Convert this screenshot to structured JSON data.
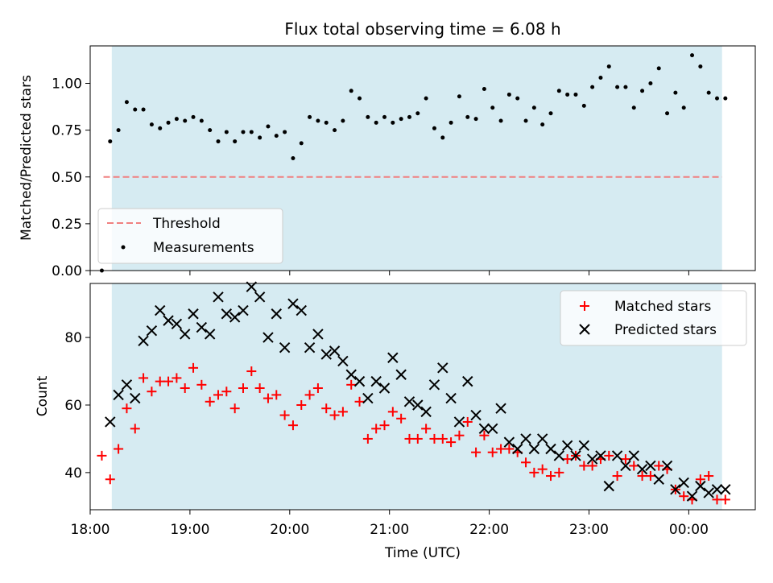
{
  "chart_data": [
    {
      "type": "scatter",
      "title": "Flux total observing time = 6.08 h",
      "ylabel": "Matched/Predicted stars",
      "xlim": [
        "18:00",
        "00:40"
      ],
      "ylim": [
        0,
        1.2
      ],
      "y_ticks": [
        "0.00",
        "0.25",
        "0.50",
        "0.75",
        "1.00"
      ],
      "legend_position": "lower-left",
      "shaded_interval": [
        "18:13",
        "00:20"
      ],
      "shade_color": "#add8e6",
      "series": [
        {
          "name": "Threshold",
          "kind": "dashed-line",
          "color": "#f08080",
          "x": [
            "18:08",
            "00:20"
          ],
          "y": [
            0.5,
            0.5
          ]
        },
        {
          "name": "Measurements",
          "kind": "points",
          "color": "#000000",
          "x": [
            "18:07",
            "18:12",
            "18:17",
            "18:22",
            "18:27",
            "18:32",
            "18:37",
            "18:42",
            "18:47",
            "18:52",
            "18:57",
            "19:02",
            "19:07",
            "19:12",
            "19:17",
            "19:22",
            "19:27",
            "19:32",
            "19:37",
            "19:42",
            "19:47",
            "19:52",
            "19:57",
            "20:02",
            "20:07",
            "20:12",
            "20:17",
            "20:22",
            "20:27",
            "20:32",
            "20:37",
            "20:42",
            "20:47",
            "20:52",
            "20:57",
            "21:02",
            "21:07",
            "21:12",
            "21:17",
            "21:22",
            "21:27",
            "21:32",
            "21:37",
            "21:42",
            "21:47",
            "21:52",
            "21:57",
            "22:02",
            "22:07",
            "22:12",
            "22:17",
            "22:22",
            "22:27",
            "22:32",
            "22:37",
            "22:42",
            "22:47",
            "22:52",
            "22:57",
            "23:02",
            "23:07",
            "23:12",
            "23:17",
            "23:22",
            "23:27",
            "23:32",
            "23:37",
            "23:42",
            "23:47",
            "23:52",
            "23:57",
            "00:02",
            "00:07",
            "00:12",
            "00:17",
            "00:22"
          ],
          "y": [
            0.0,
            0.69,
            0.75,
            0.9,
            0.86,
            0.86,
            0.78,
            0.76,
            0.79,
            0.81,
            0.8,
            0.82,
            0.8,
            0.75,
            0.69,
            0.74,
            0.69,
            0.74,
            0.74,
            0.71,
            0.77,
            0.72,
            0.74,
            0.6,
            0.68,
            0.82,
            0.8,
            0.79,
            0.75,
            0.8,
            0.96,
            0.92,
            0.82,
            0.79,
            0.82,
            0.79,
            0.81,
            0.82,
            0.84,
            0.92,
            0.76,
            0.71,
            0.79,
            0.93,
            0.82,
            0.81,
            0.97,
            0.87,
            0.8,
            0.94,
            0.92,
            0.8,
            0.87,
            0.78,
            0.84,
            0.96,
            0.94,
            0.94,
            0.88,
            0.98,
            1.03,
            1.09,
            0.98,
            0.98,
            0.87,
            0.96,
            1.0,
            1.08,
            0.84,
            0.95,
            0.87,
            1.15,
            1.09,
            0.95,
            0.92,
            0.92
          ]
        }
      ]
    },
    {
      "type": "scatter",
      "xlabel": "Time (UTC)",
      "ylabel": "Count",
      "xlim": [
        "18:00",
        "00:40"
      ],
      "ylim": [
        29,
        96
      ],
      "x_ticks": [
        "18:00",
        "19:00",
        "20:00",
        "21:00",
        "22:00",
        "23:00",
        "00:00"
      ],
      "y_ticks": [
        "40",
        "60",
        "80"
      ],
      "legend_position": "top-right",
      "shaded_interval": [
        "18:13",
        "00:20"
      ],
      "shade_color": "#add8e6",
      "series": [
        {
          "name": "Matched stars",
          "kind": "plus",
          "color": "#ff0000",
          "x": [
            "18:07",
            "18:12",
            "18:17",
            "18:22",
            "18:27",
            "18:32",
            "18:37",
            "18:42",
            "18:47",
            "18:52",
            "18:57",
            "19:02",
            "19:07",
            "19:12",
            "19:17",
            "19:22",
            "19:27",
            "19:32",
            "19:37",
            "19:42",
            "19:47",
            "19:52",
            "19:57",
            "20:02",
            "20:07",
            "20:12",
            "20:17",
            "20:22",
            "20:27",
            "20:32",
            "20:37",
            "20:42",
            "20:47",
            "20:52",
            "20:57",
            "21:02",
            "21:07",
            "21:12",
            "21:17",
            "21:22",
            "21:27",
            "21:32",
            "21:37",
            "21:42",
            "21:47",
            "21:52",
            "21:57",
            "22:02",
            "22:07",
            "22:12",
            "22:17",
            "22:22",
            "22:27",
            "22:32",
            "22:37",
            "22:42",
            "22:47",
            "22:52",
            "22:57",
            "23:02",
            "23:07",
            "23:12",
            "23:17",
            "23:22",
            "23:27",
            "23:32",
            "23:37",
            "23:42",
            "23:47",
            "23:52",
            "23:57",
            "00:02",
            "00:07",
            "00:12",
            "00:17",
            "00:22"
          ],
          "y": [
            45,
            38,
            47,
            59,
            53,
            68,
            64,
            67,
            67,
            68,
            65,
            71,
            66,
            61,
            63,
            64,
            59,
            65,
            70,
            65,
            62,
            63,
            57,
            54,
            60,
            63,
            65,
            59,
            57,
            58,
            66,
            61,
            50,
            53,
            54,
            58,
            56,
            50,
            50,
            53,
            50,
            50,
            49,
            51,
            55,
            46,
            51,
            46,
            47,
            47,
            46,
            43,
            40,
            41,
            39,
            40,
            44,
            45,
            42,
            42,
            44,
            45,
            39,
            44,
            42,
            39,
            39,
            42,
            41,
            35,
            33,
            32,
            38,
            39,
            32,
            32
          ]
        },
        {
          "name": "Predicted stars",
          "kind": "cross",
          "color": "#000000",
          "x": [
            "18:12",
            "18:17",
            "18:22",
            "18:27",
            "18:32",
            "18:37",
            "18:42",
            "18:47",
            "18:52",
            "18:57",
            "19:02",
            "19:07",
            "19:12",
            "19:17",
            "19:22",
            "19:27",
            "19:32",
            "19:37",
            "19:42",
            "19:47",
            "19:52",
            "19:57",
            "20:02",
            "20:07",
            "20:12",
            "20:17",
            "20:22",
            "20:27",
            "20:32",
            "20:37",
            "20:42",
            "20:47",
            "20:52",
            "20:57",
            "21:02",
            "21:07",
            "21:12",
            "21:17",
            "21:22",
            "21:27",
            "21:32",
            "21:37",
            "21:42",
            "21:47",
            "21:52",
            "21:57",
            "22:02",
            "22:07",
            "22:12",
            "22:17",
            "22:22",
            "22:27",
            "22:32",
            "22:37",
            "22:42",
            "22:47",
            "22:52",
            "22:57",
            "23:02",
            "23:07",
            "23:12",
            "23:17",
            "23:22",
            "23:27",
            "23:32",
            "23:37",
            "23:42",
            "23:47",
            "23:52",
            "23:57",
            "00:02",
            "00:07",
            "00:12",
            "00:17",
            "00:22"
          ],
          "y": [
            55,
            63,
            66,
            62,
            79,
            82,
            88,
            85,
            84,
            81,
            87,
            83,
            81,
            92,
            87,
            86,
            88,
            95,
            92,
            80,
            87,
            77,
            90,
            88,
            77,
            81,
            75,
            76,
            73,
            69,
            67,
            62,
            67,
            65,
            74,
            69,
            61,
            60,
            58,
            66,
            71,
            62,
            55,
            67,
            57,
            53,
            53,
            59,
            49,
            47,
            50,
            47,
            50,
            47,
            45,
            48,
            45,
            48,
            44,
            45,
            36,
            45,
            42,
            45,
            41,
            42,
            38,
            42,
            35,
            37,
            33,
            36,
            34,
            35,
            35
          ]
        }
      ]
    }
  ]
}
